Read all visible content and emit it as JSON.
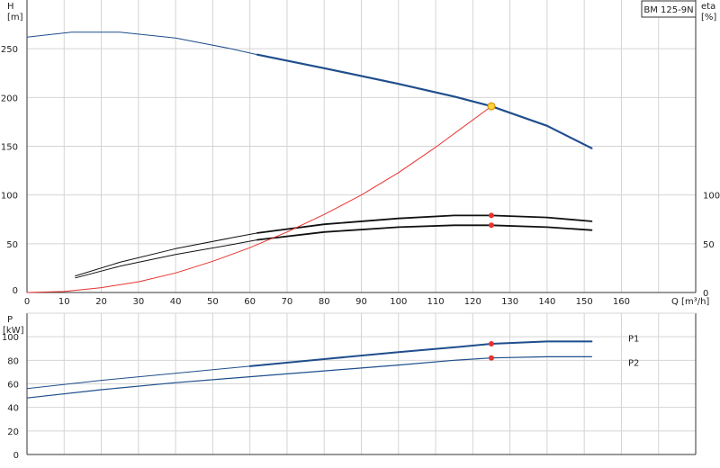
{
  "model_label": "BM 125-9N",
  "chart_data": [
    {
      "type": "line",
      "panel": "head-efficiency",
      "ylabel": "H",
      "yunit": "[m]",
      "y2label": "eta",
      "y2unit": "[%]",
      "xlabel": "Q [m³/h]",
      "xlim": [
        0,
        180
      ],
      "ylim": [
        0,
        300
      ],
      "y2lim": [
        0,
        300
      ],
      "xticks": [
        0,
        10,
        20,
        30,
        40,
        50,
        60,
        70,
        80,
        90,
        100,
        110,
        120,
        130,
        140,
        150,
        160
      ],
      "yticks": [
        0,
        50,
        100,
        150,
        200,
        250
      ],
      "y2ticks": [
        0,
        50,
        100
      ],
      "grid": true,
      "series": [
        {
          "id": "head",
          "color": "#1f4e8c",
          "x": [
            0,
            12,
            25,
            40,
            55,
            62,
            80,
            100,
            115,
            125,
            140,
            152
          ],
          "y": [
            262,
            267,
            267,
            261,
            250,
            244,
            230,
            214,
            201,
            191,
            171,
            148
          ]
        },
        {
          "id": "eff-total",
          "color": "#111111",
          "x": [
            13,
            25,
            40,
            55,
            62,
            80,
            100,
            115,
            125,
            140,
            152
          ],
          "y": [
            17,
            31,
            45,
            56,
            61,
            70,
            76,
            79,
            79,
            77,
            73
          ]
        },
        {
          "id": "eff-pump",
          "color": "#111111",
          "x": [
            13,
            25,
            40,
            55,
            62,
            80,
            100,
            115,
            125,
            140,
            152
          ],
          "y": [
            15,
            27,
            39,
            49,
            54,
            62,
            67,
            69,
            69,
            67,
            64
          ]
        },
        {
          "id": "system-curve",
          "color": "#e8322e",
          "x": [
            0,
            10,
            20,
            30,
            40,
            50,
            60,
            70,
            80,
            90,
            100,
            110,
            125
          ],
          "y": [
            0,
            1,
            5,
            11,
            20,
            32,
            46,
            62,
            80,
            100,
            123,
            149,
            191
          ]
        }
      ],
      "operating_points": [
        {
          "x": 125,
          "y": 191,
          "color": "#ffd23c"
        },
        {
          "x": 125,
          "y": 79,
          "color": "#e8322e"
        },
        {
          "x": 125,
          "y": 69,
          "color": "#e8322e"
        }
      ]
    },
    {
      "type": "line",
      "panel": "power",
      "ylabel": "P",
      "yunit": "[kW]",
      "xlim": [
        0,
        180
      ],
      "ylim": [
        0,
        120
      ],
      "yticks": [
        0,
        20,
        40,
        60,
        80,
        100
      ],
      "grid": true,
      "series": [
        {
          "name": "P1",
          "color": "#1f4e8c",
          "x": [
            0,
            20,
            40,
            60,
            80,
            100,
            115,
            125,
            140,
            152
          ],
          "y": [
            56,
            63,
            69,
            75,
            81,
            87,
            91,
            94,
            96,
            96
          ]
        },
        {
          "name": "P2",
          "color": "#1f4e8c",
          "x": [
            0,
            20,
            40,
            60,
            80,
            100,
            115,
            125,
            140,
            152
          ],
          "y": [
            48,
            55,
            61,
            66,
            71,
            76,
            80,
            82,
            83,
            83
          ]
        }
      ],
      "operating_points": [
        {
          "x": 125,
          "y": 94,
          "color": "#e8322e"
        },
        {
          "x": 125,
          "y": 82,
          "color": "#e8322e"
        }
      ]
    }
  ]
}
